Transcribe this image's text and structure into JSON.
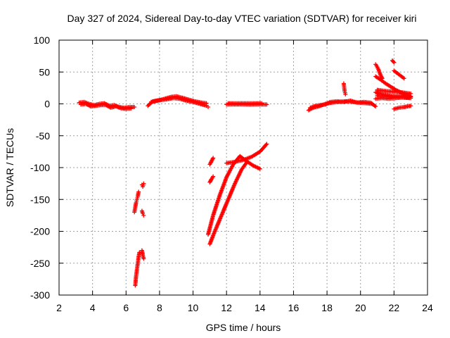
{
  "chart_data": {
    "type": "scatter",
    "title": "Day 327 of 2024, Sidereal Day-to-day VTEC variation (SDTVAR) for receiver kiri",
    "xlabel": "GPS time / hours",
    "ylabel": "SDTVAR / TECUs",
    "xlim": [
      2,
      24
    ],
    "ylim": [
      -300,
      100
    ],
    "xticks": [
      2,
      4,
      6,
      8,
      10,
      12,
      14,
      16,
      18,
      20,
      22,
      24
    ],
    "yticks": [
      100,
      50,
      0,
      -50,
      -100,
      -150,
      -200,
      -250,
      -300
    ],
    "grid": true,
    "marker": "+",
    "marker_color": "#ff0000",
    "series": [
      {
        "name": "SDTVAR",
        "segments": [
          {
            "x": [
              3.2,
              3.5,
              3.8,
              4.1,
              4.4,
              4.7,
              5.0,
              5.3,
              5.6,
              5.9,
              6.2,
              6.5
            ],
            "y": [
              2,
              3,
              0,
              -2,
              0,
              1,
              -3,
              -2,
              -5,
              -6,
              -5,
              -5
            ]
          },
          {
            "x": [
              3.3,
              3.6,
              3.9,
              4.2,
              4.5,
              4.8,
              5.1,
              5.4,
              5.7,
              6.0,
              6.3
            ],
            "y": [
              -1,
              0,
              -4,
              -3,
              -2,
              -2,
              -6,
              -4,
              -7,
              -8,
              -7
            ]
          },
          {
            "x": [
              6.5,
              6.55,
              6.6,
              6.65,
              6.7,
              6.75
            ],
            "y": [
              -170,
              -162,
              -155,
              -150,
              -145,
              -138
            ]
          },
          {
            "x": [
              6.95,
              7.0,
              7.05
            ],
            "y": [
              -127,
              -130,
              -125
            ]
          },
          {
            "x": [
              6.95,
              7.0,
              7.05
            ],
            "y": [
              -168,
              -172,
              -175
            ]
          },
          {
            "x": [
              6.55,
              6.6,
              6.65,
              6.7,
              6.75,
              6.8
            ],
            "y": [
              -285,
              -270,
              -260,
              -250,
              -240,
              -233
            ]
          },
          {
            "x": [
              6.95,
              7.0,
              7.05
            ],
            "y": [
              -230,
              -237,
              -243
            ]
          },
          {
            "x": [
              7.3,
              7.6,
              8.0,
              8.4,
              8.8,
              9.2,
              9.6,
              10.0,
              10.4,
              10.8,
              10.9
            ],
            "y": [
              -3,
              4,
              6,
              7,
              9,
              8,
              5,
              3,
              0,
              -3,
              -5
            ]
          },
          {
            "x": [
              7.5,
              7.9,
              8.3,
              8.7,
              9.0,
              9.3,
              9.7,
              10.1,
              10.5,
              10.8
            ],
            "y": [
              3,
              5,
              8,
              11,
              12,
              10,
              7,
              4,
              2,
              1
            ]
          },
          {
            "x": [
              11.0,
              11.1,
              11.2
            ],
            "y": [
              -95,
              -90,
              -85
            ]
          },
          {
            "x": [
              11.0,
              11.1,
              11.2
            ],
            "y": [
              -123,
              -118,
              -114
            ]
          },
          {
            "x": [
              10.9,
              11.2,
              11.6,
              12.0,
              12.4,
              12.8,
              13.2,
              13.6,
              14.0
            ],
            "y": [
              -205,
              -175,
              -143,
              -115,
              -95,
              -82,
              -90,
              -97,
              -102
            ]
          },
          {
            "x": [
              11.0,
              11.3,
              11.7,
              12.1,
              12.5,
              12.9,
              13.2
            ],
            "y": [
              -220,
              -200,
              -175,
              -150,
              -125,
              -103,
              -92
            ]
          },
          {
            "x": [
              12.0,
              12.5,
              13.0,
              13.5,
              14.0,
              14.4
            ],
            "y": [
              -93,
              -91,
              -88,
              -83,
              -75,
              -63
            ]
          },
          {
            "x": [
              12.0,
              12.4,
              12.8,
              13.2,
              13.6,
              14.0,
              14.4
            ],
            "y": [
              -1,
              -1,
              -1,
              -1,
              -1,
              -1,
              -1
            ]
          },
          {
            "x": [
              12.1,
              12.5,
              12.9,
              13.3,
              13.7,
              14.1
            ],
            "y": [
              1,
              1,
              1,
              1,
              1,
              1
            ]
          },
          {
            "x": [
              16.9,
              17.1,
              17.3,
              17.5,
              17.7,
              17.9,
              18.3,
              18.7,
              19.1,
              19.5,
              19.9,
              20.3,
              20.7
            ],
            "y": [
              -10,
              -7,
              -5,
              -4,
              -2,
              0,
              2,
              3,
              4,
              3,
              2,
              1,
              0
            ]
          },
          {
            "x": [
              17.0,
              17.3,
              17.6,
              17.9,
              18.2,
              18.6,
              19.0,
              19.4,
              19.8,
              20.2,
              20.6,
              20.9
            ],
            "y": [
              -6,
              -3,
              -2,
              -1,
              3,
              4,
              3,
              5,
              2,
              3,
              2,
              -4
            ]
          },
          {
            "x": [
              19.0,
              19.05,
              19.1
            ],
            "y": [
              32,
              20,
              15
            ]
          },
          {
            "x": [
              20.9,
              21.0,
              21.1,
              21.2,
              21.3
            ],
            "y": [
              62,
              58,
              52,
              45,
              40
            ]
          },
          {
            "x": [
              21.9,
              22.0
            ],
            "y": [
              68,
              65
            ]
          },
          {
            "x": [
              22.0,
              22.2,
              22.4,
              22.6
            ],
            "y": [
              52,
              48,
              44,
              40
            ]
          },
          {
            "x": [
              20.9,
              21.2,
              21.5,
              21.8,
              22.1,
              22.4,
              22.7,
              23.0
            ],
            "y": [
              43,
              38,
              32,
              27,
              22,
              18,
              15,
              12
            ]
          },
          {
            "x": [
              20.9,
              21.3,
              21.7,
              22.1,
              22.5,
              22.9
            ],
            "y": [
              18,
              15,
              13,
              11,
              10,
              10
            ]
          },
          {
            "x": [
              20.9,
              21.3,
              21.7,
              22.1,
              22.5,
              23.0
            ],
            "y": [
              8,
              9,
              8,
              9,
              10,
              9
            ]
          },
          {
            "x": [
              21.0,
              21.4,
              21.8,
              22.2,
              22.6,
              23.0
            ],
            "y": [
              13,
              12,
              11,
              12,
              13,
              11
            ]
          },
          {
            "x": [
              21.0,
              21.5,
              22.0,
              22.5,
              23.0
            ],
            "y": [
              22,
              20,
              19,
              18,
              16
            ]
          },
          {
            "x": [
              22.0,
              22.3,
              22.6,
              23.0
            ],
            "y": [
              -8,
              -6,
              -5,
              -3
            ]
          }
        ]
      }
    ]
  }
}
